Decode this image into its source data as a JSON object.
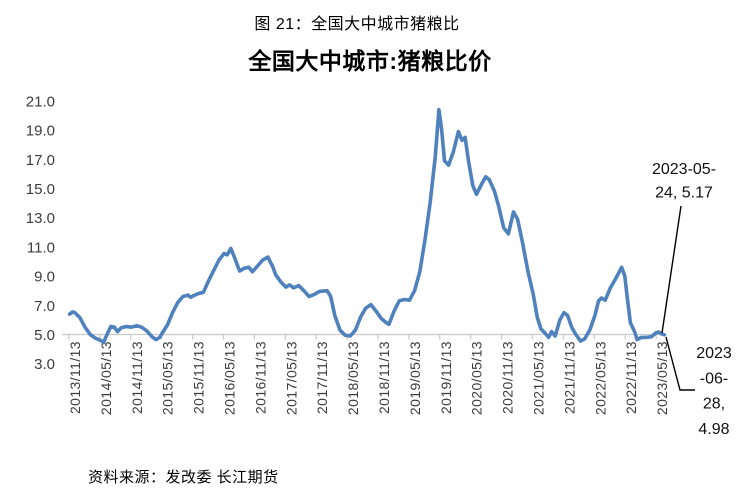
{
  "page": {
    "caption": "图 21：全国大中城市猪粮比",
    "source": "资料来源：发改委 长江期货"
  },
  "chart_data": {
    "type": "line",
    "title": "全国大中城市:猪粮比价",
    "xlabel": "",
    "ylabel": "",
    "ylim": [
      3.0,
      21.0
    ],
    "y_tick_step": 2.0,
    "axis_crosses_at_y": 5.0,
    "grid": false,
    "legend": "none",
    "x_unit": "months since 2013-11-13",
    "x_tick_labels": [
      "2013/11/13",
      "2014/05/13",
      "2014/11/13",
      "2015/05/13",
      "2015/11/13",
      "2016/05/13",
      "2016/11/13",
      "2017/05/13",
      "2017/11/13",
      "2018/05/13",
      "2018/11/13",
      "2019/05/13",
      "2019/11/13",
      "2020/05/13",
      "2020/11/13",
      "2021/05/13",
      "2021/11/13",
      "2022/05/13",
      "2022/11/13",
      "2023/05/13"
    ],
    "y_tick_labels": [
      "21.0",
      "19.0",
      "17.0",
      "15.0",
      "13.0",
      "11.0",
      "9.0",
      "7.0",
      "5.0",
      "3.0"
    ],
    "series": [
      {
        "name": "全国大中城市猪粮比价",
        "color": "#4F81BD",
        "points": [
          [
            0,
            6.4
          ],
          [
            0.6,
            6.55
          ],
          [
            1,
            6.5
          ],
          [
            2,
            6.15
          ],
          [
            3,
            5.5
          ],
          [
            4,
            5.0
          ],
          [
            5,
            4.75
          ],
          [
            6,
            4.6
          ],
          [
            6.6,
            4.45
          ],
          [
            7,
            4.8
          ],
          [
            8,
            5.55
          ],
          [
            8.7,
            5.5
          ],
          [
            9.3,
            5.2
          ],
          [
            10,
            5.45
          ],
          [
            11,
            5.55
          ],
          [
            12,
            5.5
          ],
          [
            13,
            5.6
          ],
          [
            14,
            5.5
          ],
          [
            15,
            5.25
          ],
          [
            16,
            4.85
          ],
          [
            16.8,
            4.65
          ],
          [
            17.5,
            4.8
          ],
          [
            18,
            5.1
          ],
          [
            19,
            5.65
          ],
          [
            20,
            6.5
          ],
          [
            21,
            7.2
          ],
          [
            22,
            7.6
          ],
          [
            23,
            7.7
          ],
          [
            23.5,
            7.55
          ],
          [
            24,
            7.65
          ],
          [
            25,
            7.8
          ],
          [
            26,
            7.9
          ],
          [
            27,
            8.7
          ],
          [
            28,
            9.4
          ],
          [
            29,
            10.1
          ],
          [
            30,
            10.55
          ],
          [
            30.6,
            10.45
          ],
          [
            31.3,
            10.9
          ],
          [
            32,
            10.3
          ],
          [
            33,
            9.35
          ],
          [
            34,
            9.55
          ],
          [
            34.8,
            9.6
          ],
          [
            35.5,
            9.3
          ],
          [
            36.5,
            9.7
          ],
          [
            37.5,
            10.1
          ],
          [
            38.5,
            10.3
          ],
          [
            39.5,
            9.6
          ],
          [
            40,
            9.1
          ],
          [
            41,
            8.6
          ],
          [
            42,
            8.25
          ],
          [
            42.7,
            8.4
          ],
          [
            43.5,
            8.2
          ],
          [
            44.5,
            8.35
          ],
          [
            45.5,
            8.0
          ],
          [
            46.5,
            7.6
          ],
          [
            47.5,
            7.75
          ],
          [
            48.5,
            7.95
          ],
          [
            50,
            8.0
          ],
          [
            50.7,
            7.6
          ],
          [
            51.5,
            6.3
          ],
          [
            52.5,
            5.3
          ],
          [
            53.5,
            4.95
          ],
          [
            54.5,
            4.9
          ],
          [
            55.5,
            5.3
          ],
          [
            56.5,
            6.2
          ],
          [
            57.5,
            6.8
          ],
          [
            58.5,
            7.05
          ],
          [
            59.5,
            6.6
          ],
          [
            60.5,
            6.1
          ],
          [
            61.5,
            5.8
          ],
          [
            62,
            5.7
          ],
          [
            63,
            6.6
          ],
          [
            64,
            7.3
          ],
          [
            65,
            7.4
          ],
          [
            66,
            7.35
          ],
          [
            67,
            8.0
          ],
          [
            68,
            9.3
          ],
          [
            69,
            11.5
          ],
          [
            70,
            14.0
          ],
          [
            71,
            17.2
          ],
          [
            71.7,
            20.4
          ],
          [
            72.2,
            19.2
          ],
          [
            72.8,
            16.9
          ],
          [
            73.6,
            16.6
          ],
          [
            74.5,
            17.5
          ],
          [
            75.5,
            18.9
          ],
          [
            76.2,
            18.3
          ],
          [
            76.8,
            18.5
          ],
          [
            77.5,
            16.8
          ],
          [
            78.3,
            15.2
          ],
          [
            79,
            14.6
          ],
          [
            80,
            15.3
          ],
          [
            80.8,
            15.8
          ],
          [
            81.5,
            15.6
          ],
          [
            82.5,
            14.8
          ],
          [
            83.3,
            13.8
          ],
          [
            84.3,
            12.3
          ],
          [
            85.2,
            11.9
          ],
          [
            86.2,
            13.4
          ],
          [
            87,
            12.9
          ],
          [
            88,
            11.2
          ],
          [
            89,
            9.3
          ],
          [
            90,
            7.8
          ],
          [
            90.8,
            6.2
          ],
          [
            91.5,
            5.4
          ],
          [
            92.3,
            5.1
          ],
          [
            93,
            4.8
          ],
          [
            93.6,
            5.2
          ],
          [
            94.3,
            4.9
          ],
          [
            95.2,
            6.0
          ],
          [
            96,
            6.5
          ],
          [
            96.7,
            6.3
          ],
          [
            97.5,
            5.5
          ],
          [
            98.3,
            5.0
          ],
          [
            99.2,
            4.55
          ],
          [
            100,
            4.7
          ],
          [
            101,
            5.3
          ],
          [
            102,
            6.3
          ],
          [
            102.7,
            7.3
          ],
          [
            103.3,
            7.5
          ],
          [
            104,
            7.35
          ],
          [
            105,
            8.2
          ],
          [
            106,
            8.8
          ],
          [
            107.2,
            9.6
          ],
          [
            107.8,
            9.0
          ],
          [
            108.3,
            7.5
          ],
          [
            108.9,
            5.8
          ],
          [
            109.7,
            5.2
          ],
          [
            110.2,
            4.65
          ],
          [
            111,
            4.8
          ],
          [
            112,
            4.8
          ],
          [
            113,
            4.85
          ],
          [
            113.8,
            5.1
          ],
          [
            114.4,
            5.17
          ],
          [
            114.9,
            5.05
          ],
          [
            115.5,
            4.98
          ]
        ]
      }
    ],
    "annotations": [
      {
        "label": "2023-05-24, 5.17",
        "lines": [
          "2023-05-",
          "24, 5.17"
        ],
        "date": "2023-05-24",
        "value": 5.17
      },
      {
        "label": "2023-06-28, 4.98",
        "lines": [
          "2023",
          "-06-",
          "28,",
          "4.98"
        ],
        "date": "2023-06-28",
        "value": 4.98
      }
    ],
    "colors": {
      "line": "#4F81BD",
      "axis": "#C8C8C8",
      "tick_label": "#3C3C3C",
      "annotation_text": "#111111",
      "annotation_line": "#000000"
    }
  }
}
